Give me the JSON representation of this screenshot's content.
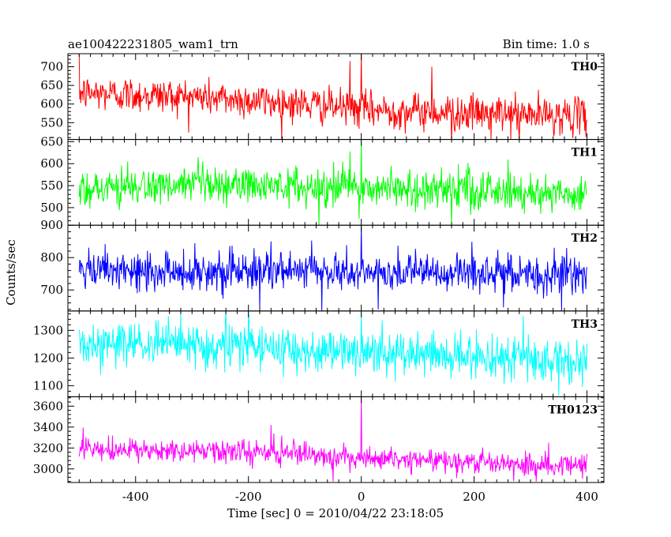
{
  "header": {
    "source_name": "ae100422231805_wam1_trn",
    "bin_time": "Bin time: 1.0 s"
  },
  "chart_data": {
    "type": "line",
    "xlabel": "Time [sec] 0 = 2010/04/22 23:18:05",
    "ylabel": "Counts/sec",
    "xlim": [
      -520,
      430
    ],
    "xticks": [
      -400,
      -200,
      0,
      200,
      400
    ],
    "x_range": [
      -500,
      400
    ],
    "bin_time_s": 1.0,
    "panels": [
      {
        "name": "TH0",
        "color": "#ff0000",
        "ylim": [
          505,
          735
        ],
        "yticks": [
          550,
          600,
          650,
          700
        ],
        "trend": [
          [
            -500,
            630
          ],
          [
            -300,
            620
          ],
          [
            -100,
            600
          ],
          [
            0,
            585
          ],
          [
            200,
            575
          ],
          [
            400,
            568
          ]
        ],
        "noise": 24,
        "burst": {
          "x": 0,
          "peak": 735
        },
        "spikes": [
          {
            "x": -500,
            "y": 735
          },
          {
            "x": -20,
            "y": 715
          },
          {
            "x": 125,
            "y": 700
          },
          {
            "x": 160,
            "y": 495
          },
          {
            "x": 230,
            "y": 505
          },
          {
            "x": 280,
            "y": 505
          }
        ]
      },
      {
        "name": "TH1",
        "color": "#00ff00",
        "ylim": [
          460,
          655
        ],
        "yticks": [
          500,
          550,
          600,
          650
        ],
        "trend": [
          [
            -500,
            545
          ],
          [
            -200,
            550
          ],
          [
            0,
            545
          ],
          [
            200,
            540
          ],
          [
            400,
            530
          ]
        ],
        "noise": 22,
        "burst": {
          "x": 0,
          "peak": 655
        },
        "spikes": [
          {
            "x": -20,
            "y": 628
          },
          {
            "x": -75,
            "y": 455
          },
          {
            "x": 160,
            "y": 460
          }
        ]
      },
      {
        "name": "TH2",
        "color": "#0000ff",
        "ylim": [
          635,
          900
        ],
        "yticks": [
          700,
          800,
          900
        ],
        "trend": [
          [
            -500,
            755
          ],
          [
            -200,
            760
          ],
          [
            0,
            755
          ],
          [
            200,
            750
          ],
          [
            400,
            745
          ]
        ],
        "noise": 30,
        "burst": {
          "x": 0,
          "peak": 900
        },
        "spikes": [
          {
            "x": -160,
            "y": 850
          },
          {
            "x": -180,
            "y": 635
          },
          {
            "x": -70,
            "y": 635
          },
          {
            "x": 30,
            "y": 640
          },
          {
            "x": 355,
            "y": 635
          }
        ]
      },
      {
        "name": "TH3",
        "color": "#00ffff",
        "ylim": [
          1060,
          1370
        ],
        "yticks": [
          1100,
          1200,
          1300
        ],
        "trend": [
          [
            -500,
            1250
          ],
          [
            -250,
            1245
          ],
          [
            0,
            1220
          ],
          [
            200,
            1205
          ],
          [
            400,
            1185
          ]
        ],
        "noise": 40,
        "burst": {
          "x": 0,
          "peak": 1370
        },
        "spikes": [
          {
            "x": -320,
            "y": 1368
          },
          {
            "x": -240,
            "y": 1370
          },
          {
            "x": -200,
            "y": 1370
          },
          {
            "x": 350,
            "y": 1065
          }
        ]
      },
      {
        "name": "TH0123",
        "color": "#ff00ff",
        "ylim": [
          2870,
          3690
        ],
        "yticks": [
          3000,
          3200,
          3400,
          3600
        ],
        "trend": [
          [
            -500,
            3180
          ],
          [
            -200,
            3160
          ],
          [
            0,
            3110
          ],
          [
            200,
            3070
          ],
          [
            400,
            3030
          ]
        ],
        "noise": 55,
        "burst": {
          "x": 0,
          "peak": 3690
        },
        "spikes": [
          {
            "x": -160,
            "y": 3420
          },
          {
            "x": -50,
            "y": 2880
          },
          {
            "x": 310,
            "y": 2880
          }
        ]
      }
    ]
  }
}
